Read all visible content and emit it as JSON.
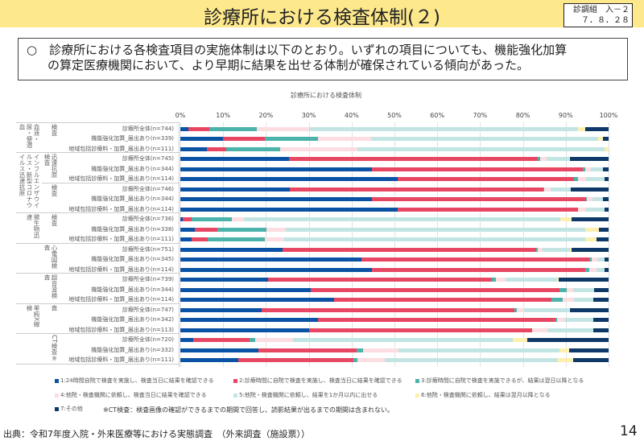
{
  "header": {
    "title": "診療所における検査体制(２)",
    "badge_line1": "診調組　入－２",
    "badge_line2": "７．８．２８"
  },
  "info": {
    "bullet": "○",
    "line1": "診療所における各検査項目の実施体制は以下のとおり。いずれの項目についても、機能強化加算",
    "line2": "の算定医療機関において、より早期に結果を出せる体制が確保されている傾向があった。"
  },
  "chart_data": {
    "type": "bar",
    "stacked": true,
    "orientation": "horizontal",
    "title": "診療所における検査体制",
    "xlim": [
      0,
      100
    ],
    "ticks": [
      "0%",
      "10%",
      "20%",
      "30%",
      "40%",
      "50%",
      "60%",
      "70%",
      "80%",
      "90%",
      "100%"
    ],
    "legend_placement": "bottom",
    "series_names": [
      "1:24時間自院で検査を実施し、検査当日に結果を確認できる",
      "2:診療時間に自院で検査を実施し、検査当日に結果を確認できる",
      "3:診療時間に自院で検査を実施できるが、結果は翌日以降となる",
      "4:他院・検査機関に依頼し、検査当日に結果を確認できる",
      "5:他院・検査機関に依頼し、結果を1か月以内に出せる",
      "6:他院・検査機関に依頼し、結果は翌月以降となる",
      "7:その他"
    ],
    "colors": [
      "#0a52a3",
      "#e84763",
      "#4bb3a9",
      "#fcdde1",
      "#c2e5e4",
      "#fcefb0",
      "#0d3868"
    ],
    "groups": [
      {
        "outer": "血液・尿・便潜血",
        "inner": "検査",
        "rows": [
          {
            "label": "診療所全体(n=744)",
            "values": [
              1.9,
              4.9,
              11.0,
              12.2,
              62.8,
              1.8,
              5.4
            ]
          },
          {
            "label": "機能強化加算_届出あり(n=339)",
            "values": [
              10.0,
              9.8,
              12.3,
              12.4,
              53.1,
              1.1,
              1.3
            ]
          },
          {
            "label": "地域包括診療料・加算_届出あり(n=111)",
            "values": [
              6.2,
              4.6,
              12.6,
              18.0,
              57.6,
              1.0,
              0
            ]
          }
        ]
      },
      {
        "outer": "インフルエンザウイルス・新型コロナウイルス迅速抗原",
        "inner": "迅速抗原検査",
        "rows": [
          {
            "label": "診療所全体(n=745)",
            "values": [
              25.4,
              58.1,
              0.5,
              1.5,
              5.3,
              0.2,
              9.0
            ]
          },
          {
            "label": "機能強化加算_届出あり(n=344)",
            "values": [
              44.7,
              49.3,
              0.6,
              1.2,
              2.9,
              0,
              1.3
            ]
          },
          {
            "label": "地域包括診療料・加算_届出あり(n=114)",
            "values": [
              50.8,
              41.2,
              0.9,
              1.8,
              4.3,
              0,
              1.0
            ]
          }
        ]
      },
      {
        "outer": "",
        "inner": "検査",
        "rows": [
          {
            "label": "診療所全体(n=746)",
            "values": [
              25.6,
              59.2,
              0.2,
              1.5,
              4.7,
              0,
              8.8
            ]
          },
          {
            "label": "機能強化加算_届出あり(n=344)",
            "values": [
              44.7,
              50.0,
              0.3,
              1.2,
              2.5,
              0,
              1.3
            ]
          },
          {
            "label": "地域包括診療料・加算_届出あり(n=114)",
            "values": [
              50.8,
              42.1,
              0,
              1.8,
              4.3,
              0,
              1.0
            ]
          }
        ]
      },
      {
        "outer": "微生物迅速",
        "inner": "検査",
        "rows": [
          {
            "label": "診療所全体(n=736)",
            "values": [
              0.6,
              2.0,
              9.4,
              2.9,
              73.8,
              2.7,
              8.6
            ]
          },
          {
            "label": "機能強化加算_届出あり(n=338)",
            "values": [
              3.3,
              5.3,
              11.5,
              4.5,
              69.9,
              3.3,
              2.2
            ]
          },
          {
            "label": "地域包括診療料・加算_届出あり(n=111)",
            "values": [
              2.7,
              3.6,
              13.5,
              4.5,
              70.2,
              2.6,
              2.9
            ]
          }
        ]
      },
      {
        "outer": "",
        "inner": "心電図検査",
        "rows": [
          {
            "label": "診療所全体(n=751)",
            "values": [
              23.8,
              59.2,
              0.5,
              1.0,
              6.5,
              0.4,
              8.6
            ]
          },
          {
            "label": "機能強化加算_届出あり(n=345)",
            "values": [
              42.3,
              53.2,
              0.6,
              1.2,
              1.7,
              0,
              1.0
            ]
          },
          {
            "label": "地域包括診療料・加算_届出あり(n=114)",
            "values": [
              44.7,
              49.9,
              0.9,
              1.7,
              1.8,
              0,
              1.0
            ]
          }
        ]
      },
      {
        "outer": "",
        "inner": "超音波検査",
        "rows": [
          {
            "label": "診療所全体(n=739)",
            "values": [
              20.4,
              52.4,
              0.8,
              2.3,
              12.1,
              0.3,
              11.7
            ]
          },
          {
            "label": "機能強化加算_届出あり(n=344)",
            "values": [
              30.5,
              58.0,
              1.8,
              1.4,
              5.0,
              0,
              3.3
            ]
          },
          {
            "label": "地域包括診療料・加算_届出あり(n=114)",
            "values": [
              35.9,
              50.8,
              2.6,
              2.7,
              4.4,
              0,
              3.6
            ]
          }
        ]
      },
      {
        "outer": "単純X線検",
        "inner": "査",
        "rows": [
          {
            "label": "診療所全体(n=747)",
            "values": [
              18.9,
              59.2,
              0.4,
              1.7,
              10.6,
              0.2,
              9.0
            ]
          },
          {
            "label": "機能強化加算_届出あり(n=342)",
            "values": [
              32.1,
              55.5,
              0.3,
              1.8,
              6.7,
              0,
              3.6
            ]
          },
          {
            "label": "地域包括診療料・加算_届出あり(n=113)",
            "values": [
              30.1,
              52.0,
              0,
              3.6,
              10.7,
              0,
              3.6
            ]
          }
        ]
      },
      {
        "outer": "",
        "inner": "CT検査※",
        "rows": [
          {
            "label": "診療所全体(n=720)",
            "values": [
              3.1,
              13.0,
              1.4,
              8.8,
              51.4,
              3.3,
              19.0
            ]
          },
          {
            "label": "機能強化加算_届出あり(n=332)",
            "values": [
              18.3,
              22.9,
              1.5,
              8.2,
              37.6,
              2.3,
              9.2
            ]
          },
          {
            "label": "地域包括診療料・加算_届出あり(n=111)",
            "values": [
              13.5,
              27.0,
              0.9,
              6.3,
              40.5,
              3.6,
              8.2
            ]
          }
        ]
      }
    ],
    "note": "※CT検査：検査画像の確認ができるまでの期間で回答し、読影結果が出るまでの期間は含まれない。"
  },
  "footer": {
    "source": "出典：令和7年度入院・外来医療等における実態調査　（外来調査（施設票））",
    "page": "14"
  }
}
